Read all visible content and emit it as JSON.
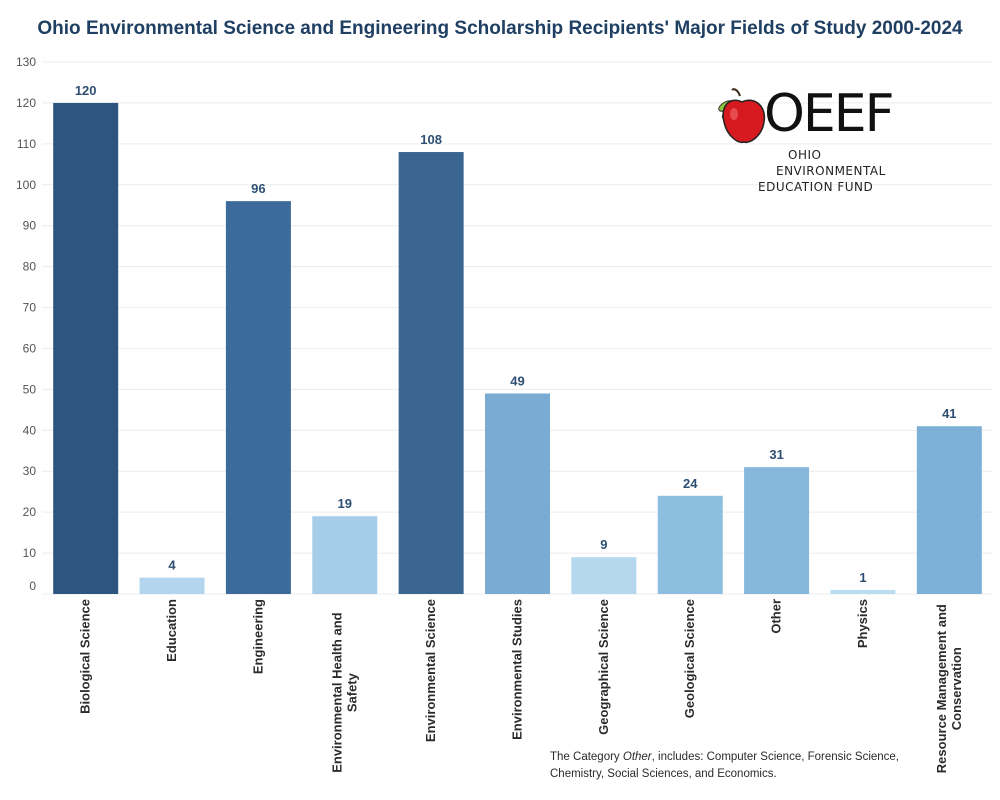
{
  "title": "Ohio Environmental Science and Engineering Scholarship Recipients' Major Fields of Study 2000-2024",
  "colors": {
    "dark": "#2e5a87",
    "mid": "#3f6c9a",
    "light": "#a7cfea",
    "medium_light": "#7fb2d8",
    "label": "#2e4f73",
    "grid": "#ececec",
    "axis_text": "#555555"
  },
  "chart_data": {
    "type": "bar",
    "title": "Ohio Environmental Science and Engineering Scholarship Recipients' Major Fields of Study 2000-2024",
    "xlabel": "",
    "ylabel": "",
    "ylim": [
      0,
      130
    ],
    "yticks": [
      0,
      10,
      20,
      30,
      40,
      50,
      60,
      70,
      80,
      90,
      100,
      110,
      120,
      130
    ],
    "grid": true,
    "categories": [
      "Biological Science",
      "Education",
      "Engineering",
      "Environmental Health and Safety",
      "Environmental Science",
      "Environmental Studies",
      "Geographical Science",
      "Geological Science",
      "Other",
      "Physics",
      "Resource Management and Conservation"
    ],
    "values": [
      120,
      4,
      96,
      19,
      108,
      49,
      9,
      24,
      31,
      1,
      41
    ],
    "bar_colors": [
      "#2d5580",
      "#b3d6ee",
      "#3c6a9a",
      "#a5cde9",
      "#3a6590",
      "#7aabd2",
      "#b6d8ef",
      "#8ebedf",
      "#86b8dc",
      "#bcdcf1",
      "#7cb0d6"
    ],
    "category_lines": [
      [
        "Biological Science"
      ],
      [
        "Education"
      ],
      [
        "Engineering"
      ],
      [
        "Environmental Health and",
        "Safety"
      ],
      [
        "Environmental Science"
      ],
      [
        "Environmental Studies"
      ],
      [
        "Geographical Science"
      ],
      [
        "Geological Science"
      ],
      [
        "Other"
      ],
      [
        "Physics"
      ],
      [
        "Resource Management and",
        "Conservation"
      ]
    ]
  },
  "footnote": {
    "prefix": "The Category ",
    "emphasis": "Other",
    "suffix": ", includes: Computer Science, Forensic Science, Chemistry, Social Sciences, and Economics."
  },
  "logo": {
    "letters": "OEEF",
    "line1": "OHIO",
    "line2": "ENVIRONMENTAL",
    "line3": "EDUCATION FUND"
  }
}
